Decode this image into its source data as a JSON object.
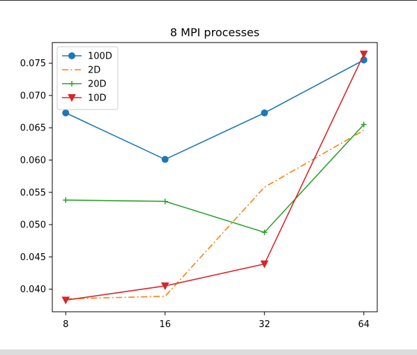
{
  "chart_data": {
    "type": "line",
    "title": "8 MPI processes",
    "xlabel": "",
    "ylabel": "",
    "x_scale": "log2",
    "x": [
      8,
      16,
      32,
      64
    ],
    "x_tick_labels": [
      "8",
      "16",
      "32",
      "64"
    ],
    "ylim": [
      0.0365,
      0.0782
    ],
    "y_ticks": [
      0.04,
      0.045,
      0.05,
      0.055,
      0.06,
      0.065,
      0.07,
      0.075
    ],
    "y_tick_labels": [
      "0.040",
      "0.045",
      "0.050",
      "0.055",
      "0.060",
      "0.065",
      "0.070",
      "0.075"
    ],
    "grid": false,
    "legend_position": "upper-left",
    "series": [
      {
        "name": "100D",
        "color": "#1f77b4",
        "marker": "circle",
        "dash": "solid",
        "values": [
          0.0673,
          0.0601,
          0.0673,
          0.0755
        ]
      },
      {
        "name": "2D",
        "color": "#ff7f0e",
        "marker": "none",
        "dash": "dashdot",
        "values": [
          0.0385,
          0.0389,
          0.0558,
          0.0646
        ]
      },
      {
        "name": "20D",
        "color": "#2ca02c",
        "marker": "plus",
        "dash": "solid",
        "values": [
          0.0538,
          0.0536,
          0.0488,
          0.0655
        ]
      },
      {
        "name": "10D",
        "color": "#d62728",
        "marker": "triangle-down",
        "dash": "solid",
        "values": [
          0.0383,
          0.0405,
          0.0439,
          0.0764
        ]
      }
    ]
  }
}
